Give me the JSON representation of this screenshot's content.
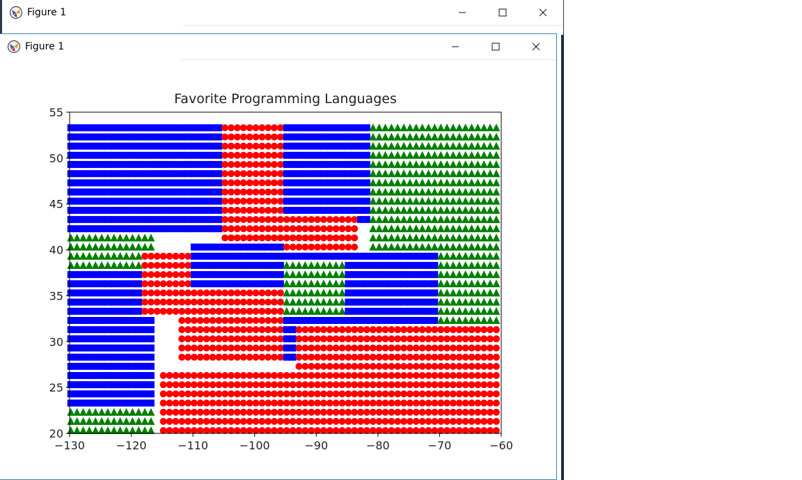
{
  "windows": {
    "back": {
      "title": "Figure 1"
    },
    "front": {
      "title": "Figure 1"
    }
  },
  "controls": {
    "minimize_icon": "minimize-icon",
    "maximize_icon": "maximize-icon",
    "close_icon": "close-icon"
  },
  "chart_data": {
    "type": "scatter",
    "title": "Favorite Programming Languages",
    "xlabel": "",
    "ylabel": "",
    "xlim": [
      -130,
      -60
    ],
    "ylim": [
      20,
      55
    ],
    "xticks": [
      -130,
      -120,
      -110,
      -100,
      -90,
      -80,
      -70,
      -60
    ],
    "yticks": [
      20,
      25,
      30,
      35,
      40,
      45,
      50,
      55
    ],
    "grid": false,
    "legend": "none",
    "series": [
      {
        "marker": "square",
        "color": "#0000ff",
        "values": []
      },
      {
        "marker": "circle",
        "color": "#ff0000",
        "values": []
      },
      {
        "marker": "triangle",
        "color": "#008000",
        "values": []
      }
    ],
    "regions": [
      {
        "x": [
          -130,
          -105.5
        ],
        "y": [
          42,
          55
        ],
        "color": "#0000ff"
      },
      {
        "x": [
          -105.5,
          -95
        ],
        "y": [
          47,
          55
        ],
        "color": "#ff0000"
      },
      {
        "x": [
          -95,
          -81
        ],
        "y": [
          43,
          55
        ],
        "color": "#0000ff"
      },
      {
        "x": [
          -81,
          -60
        ],
        "y": [
          20,
          55
        ],
        "color": "#008000"
      },
      {
        "x": [
          -130,
          -116
        ],
        "y": [
          20,
          42
        ],
        "color": "#008000"
      },
      {
        "x": [
          -115,
          -60
        ],
        "y": [
          20,
          27
        ],
        "color": "#ff0000"
      },
      {
        "x": [
          -130,
          -116
        ],
        "y": [
          23,
          38
        ],
        "color": "#0000ff"
      },
      {
        "x": [
          -118,
          -105
        ],
        "y": [
          33,
          40
        ],
        "color": "#ff0000"
      },
      {
        "x": [
          -110,
          -95
        ],
        "y": [
          36,
          41
        ],
        "color": "#0000ff"
      },
      {
        "x": [
          -105,
          -95
        ],
        "y": [
          41,
          47
        ],
        "color": "#ff0000"
      },
      {
        "x": [
          -95,
          -85
        ],
        "y": [
          28,
          40
        ],
        "color": "#0000ff"
      },
      {
        "x": [
          -112,
          -95
        ],
        "y": [
          28,
          36
        ],
        "color": "#ff0000"
      },
      {
        "x": [
          -85,
          -70
        ],
        "y": [
          30,
          40
        ],
        "color": "#0000ff"
      },
      {
        "x": [
          -95,
          -83
        ],
        "y": [
          40,
          44
        ],
        "color": "#ff0000"
      },
      {
        "x": [
          -93,
          -60
        ],
        "y": [
          27,
          32
        ],
        "color": "#ff0000"
      },
      {
        "x": [
          -95,
          -85
        ],
        "y": [
          33,
          39
        ],
        "color": "#008000"
      }
    ]
  }
}
